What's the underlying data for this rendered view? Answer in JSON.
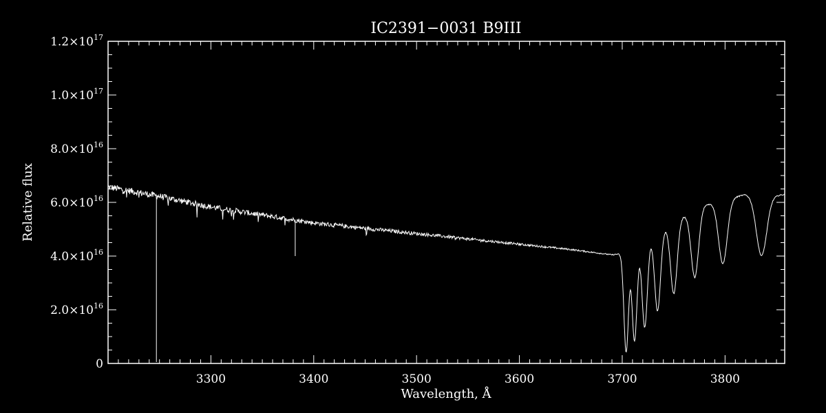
{
  "chart_data": {
    "type": "line",
    "title": "IC2391−0031   B9III",
    "xlabel": "Wavelength, Å",
    "ylabel": "Relative flux",
    "xlim": [
      3200,
      3858
    ],
    "ylim": [
      0,
      1.2e+17
    ],
    "x_ticks": [
      {
        "value": 3300,
        "label": "3300"
      },
      {
        "value": 3400,
        "label": "3400"
      },
      {
        "value": 3500,
        "label": "3500"
      },
      {
        "value": 3600,
        "label": "3600"
      },
      {
        "value": 3700,
        "label": "3700"
      },
      {
        "value": 3800,
        "label": "3800"
      }
    ],
    "y_ticks": [
      {
        "value": 0,
        "mant": "0",
        "exp": ""
      },
      {
        "value": 2e+16,
        "mant": "2.0×10",
        "exp": "16"
      },
      {
        "value": 4e+16,
        "mant": "4.0×10",
        "exp": "16"
      },
      {
        "value": 6e+16,
        "mant": "6.0×10",
        "exp": "16"
      },
      {
        "value": 8e+16,
        "mant": "8.0×10",
        "exp": "16"
      },
      {
        "value": 1e+17,
        "mant": "1.0×10",
        "exp": "17"
      },
      {
        "value": 1.2e+17,
        "mant": "1.2×10",
        "exp": "17"
      }
    ],
    "grid": false,
    "colors": {
      "background": "#000000",
      "line": "#ffffff"
    },
    "series": [
      {
        "continuum": [
          [
            3200,
            6.6e+16
          ],
          [
            3250,
            6.25e+16
          ],
          [
            3300,
            5.85e+16
          ],
          [
            3350,
            5.55e+16
          ],
          [
            3400,
            5.25e+16
          ],
          [
            3450,
            5.05e+16
          ],
          [
            3500,
            4.85e+16
          ],
          [
            3550,
            4.65e+16
          ],
          [
            3600,
            4.45e+16
          ],
          [
            3650,
            4.25e+16
          ],
          [
            3690,
            4.05e+16
          ],
          [
            3700,
            4.1e+16
          ],
          [
            3720,
            4.5e+16
          ],
          [
            3740,
            5e+16
          ],
          [
            3760,
            5.5e+16
          ],
          [
            3780,
            5.9e+16
          ],
          [
            3800,
            6.1e+16
          ],
          [
            3820,
            6.3e+16
          ],
          [
            3840,
            6.2e+16
          ],
          [
            3858,
            6.3e+16
          ]
        ],
        "balmer_lines": [
          {
            "x": 3835.4,
            "depth": 2.2e+16
          },
          {
            "x": 3797.9,
            "depth": 2.35e+16
          },
          {
            "x": 3770.6,
            "depth": 2.5e+16
          },
          {
            "x": 3750.2,
            "depth": 2.65e+16
          },
          {
            "x": 3734.4,
            "depth": 2.9e+16
          },
          {
            "x": 3721.9,
            "depth": 3.2e+16
          },
          {
            "x": 3711.97,
            "depth": 3.5e+16
          },
          {
            "x": 3703.86,
            "depth": 3.75e+16
          }
        ],
        "spikes": [
          {
            "x": 3247,
            "y": 500000000000000.0
          },
          {
            "x": 3382,
            "y": 4e+16
          }
        ]
      }
    ]
  }
}
